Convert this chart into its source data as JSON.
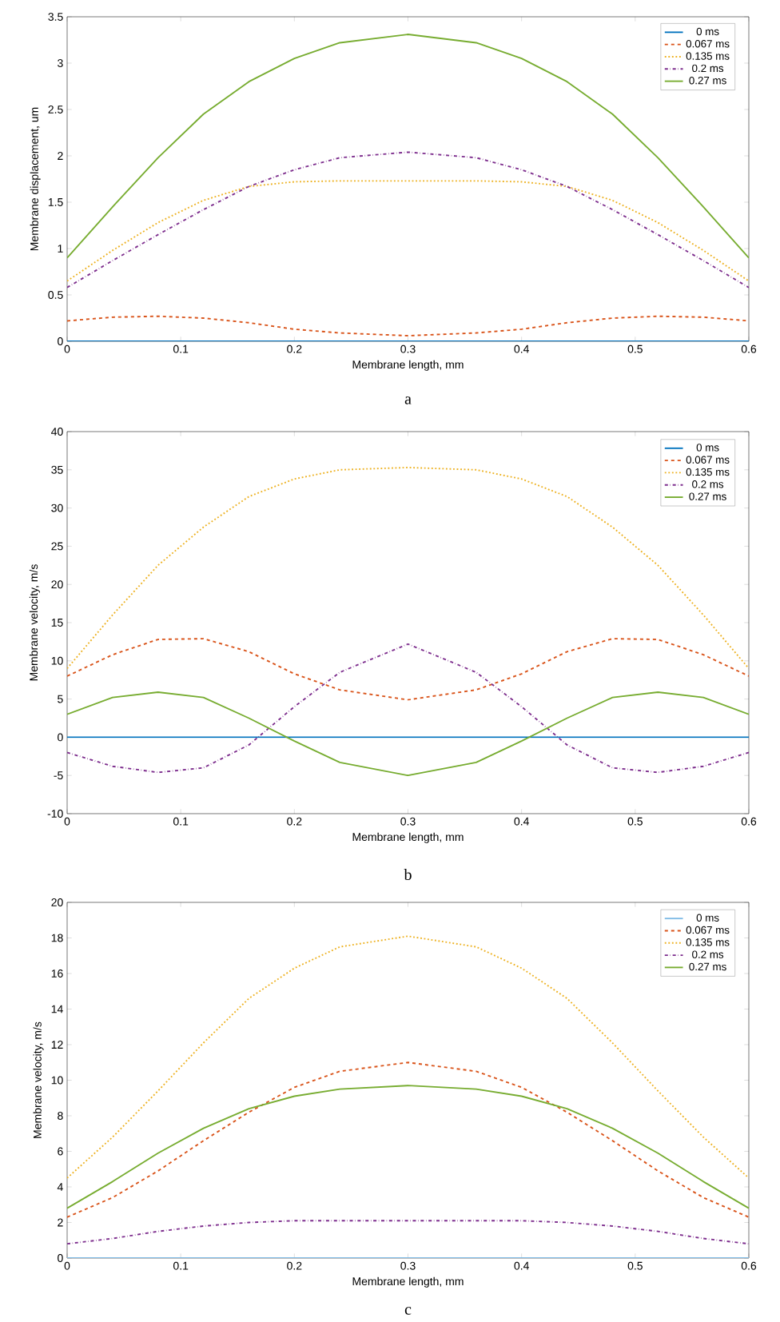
{
  "chart_data": [
    {
      "type": "line",
      "xlabel": "Membrane length, mm",
      "ylabel": "Membrane displacement, um",
      "annotations": [
        "a"
      ],
      "x": [
        0,
        0.04,
        0.08,
        0.12,
        0.16,
        0.2,
        0.24,
        0.3,
        0.36,
        0.4,
        0.44,
        0.48,
        0.52,
        0.56,
        0.6
      ],
      "xlim": [
        0,
        0.6
      ],
      "ylim": [
        0,
        3.5
      ],
      "xticks": [
        0,
        0.1,
        0.2,
        0.3,
        0.4,
        0.5,
        0.6
      ],
      "yticks": [
        0,
        0.5,
        1,
        1.5,
        2,
        2.5,
        3,
        3.5
      ],
      "legend": "top right",
      "grid": false,
      "series": [
        {
          "name": "0 ms",
          "color": "#0072bd",
          "line_style": "solid",
          "values": [
            0,
            0,
            0,
            0,
            0,
            0,
            0,
            0,
            0,
            0,
            0,
            0,
            0,
            0,
            0
          ]
        },
        {
          "name": "0.067 ms",
          "color": "#d95319",
          "line_style": "dashed",
          "values": [
            0.22,
            0.26,
            0.27,
            0.25,
            0.2,
            0.13,
            0.09,
            0.06,
            0.09,
            0.13,
            0.2,
            0.25,
            0.27,
            0.26,
            0.22
          ]
        },
        {
          "name": "0.135 ms",
          "color": "#edb120",
          "line_style": "dotted",
          "values": [
            0.65,
            0.98,
            1.28,
            1.52,
            1.67,
            1.72,
            1.73,
            1.73,
            1.73,
            1.72,
            1.67,
            1.52,
            1.28,
            0.98,
            0.65
          ]
        },
        {
          "name": "0.2 ms",
          "color": "#7e2f8e",
          "line_style": "dashdot",
          "values": [
            0.58,
            0.87,
            1.15,
            1.42,
            1.67,
            1.85,
            1.98,
            2.04,
            1.98,
            1.85,
            1.67,
            1.42,
            1.15,
            0.87,
            0.58
          ]
        },
        {
          "name": "0.27 ms",
          "color": "#77ac30",
          "line_style": "solid",
          "values": [
            0.9,
            1.45,
            1.98,
            2.45,
            2.8,
            3.05,
            3.22,
            3.31,
            3.22,
            3.05,
            2.8,
            2.45,
            1.98,
            1.45,
            0.9
          ]
        }
      ]
    },
    {
      "type": "line",
      "xlabel": "Membrane length, mm",
      "ylabel": "Membrane velocity, m/s",
      "annotations": [
        "b"
      ],
      "x": [
        0,
        0.04,
        0.08,
        0.12,
        0.16,
        0.2,
        0.24,
        0.3,
        0.36,
        0.4,
        0.44,
        0.48,
        0.52,
        0.56,
        0.6
      ],
      "xlim": [
        0,
        0.6
      ],
      "ylim": [
        -10,
        40
      ],
      "xticks": [
        0,
        0.1,
        0.2,
        0.3,
        0.4,
        0.5,
        0.6
      ],
      "yticks": [
        -10,
        -5,
        0,
        5,
        10,
        15,
        20,
        25,
        30,
        35,
        40
      ],
      "legend": "top right",
      "grid": false,
      "series": [
        {
          "name": "0 ms",
          "color": "#0072bd",
          "line_style": "solid",
          "values": [
            0,
            0,
            0,
            0,
            0,
            0,
            0,
            0,
            0,
            0,
            0,
            0,
            0,
            0,
            0
          ]
        },
        {
          "name": "0.067 ms",
          "color": "#d95319",
          "line_style": "dashed",
          "values": [
            8,
            10.8,
            12.8,
            12.9,
            11.2,
            8.3,
            6.2,
            4.9,
            6.2,
            8.3,
            11.2,
            12.9,
            12.8,
            10.8,
            8
          ]
        },
        {
          "name": "0.135 ms",
          "color": "#edb120",
          "line_style": "dotted",
          "values": [
            9,
            16,
            22.5,
            27.5,
            31.5,
            33.8,
            35,
            35.3,
            35,
            33.8,
            31.5,
            27.5,
            22.5,
            16,
            9
          ]
        },
        {
          "name": "0.2 ms",
          "color": "#7e2f8e",
          "line_style": "dashdot",
          "values": [
            -2,
            -3.8,
            -4.6,
            -4,
            -1,
            4,
            8.5,
            12.2,
            8.5,
            4,
            -1,
            -4,
            -4.6,
            -3.8,
            -2
          ]
        },
        {
          "name": "0.27 ms",
          "color": "#77ac30",
          "line_style": "solid",
          "values": [
            3,
            5.2,
            5.9,
            5.2,
            2.5,
            -0.5,
            -3.3,
            -5,
            -3.3,
            -0.5,
            2.5,
            5.2,
            5.9,
            5.2,
            3
          ]
        }
      ]
    },
    {
      "type": "line",
      "xlabel": "Membrane length, mm",
      "ylabel": "Membrane velocity, m/s",
      "annotations": [
        "c"
      ],
      "x": [
        0,
        0.04,
        0.08,
        0.12,
        0.16,
        0.2,
        0.24,
        0.3,
        0.36,
        0.4,
        0.44,
        0.48,
        0.52,
        0.56,
        0.6
      ],
      "xlim": [
        0,
        0.6
      ],
      "ylim": [
        0,
        20
      ],
      "xticks": [
        0,
        0.1,
        0.2,
        0.3,
        0.4,
        0.5,
        0.6
      ],
      "yticks": [
        0,
        2,
        4,
        6,
        8,
        10,
        12,
        14,
        16,
        18,
        20
      ],
      "legend": "top right",
      "grid": false,
      "series": [
        {
          "name": "0 ms",
          "color": "#7fbce6",
          "line_style": "solid",
          "values": [
            0,
            0,
            0,
            0,
            0,
            0,
            0,
            0,
            0,
            0,
            0,
            0,
            0,
            0,
            0
          ]
        },
        {
          "name": "0.067 ms",
          "color": "#d95319",
          "line_style": "dashed",
          "values": [
            2.3,
            3.4,
            4.9,
            6.6,
            8.2,
            9.6,
            10.5,
            11.0,
            10.5,
            9.6,
            8.2,
            6.6,
            4.9,
            3.4,
            2.3
          ]
        },
        {
          "name": "0.135 ms",
          "color": "#edb120",
          "line_style": "dotted",
          "values": [
            4.5,
            6.8,
            9.4,
            12.1,
            14.6,
            16.3,
            17.5,
            18.1,
            17.5,
            16.3,
            14.6,
            12.1,
            9.4,
            6.8,
            4.5
          ]
        },
        {
          "name": "0.2 ms",
          "color": "#7e2f8e",
          "line_style": "dashdot",
          "values": [
            0.8,
            1.1,
            1.5,
            1.8,
            2.0,
            2.1,
            2.1,
            2.1,
            2.1,
            2.1,
            2.0,
            1.8,
            1.5,
            1.1,
            0.8
          ]
        },
        {
          "name": "0.27 ms",
          "color": "#77ac30",
          "line_style": "solid",
          "values": [
            2.8,
            4.3,
            5.9,
            7.3,
            8.4,
            9.1,
            9.5,
            9.7,
            9.5,
            9.1,
            8.4,
            7.3,
            5.9,
            4.3,
            2.8
          ]
        }
      ]
    }
  ]
}
